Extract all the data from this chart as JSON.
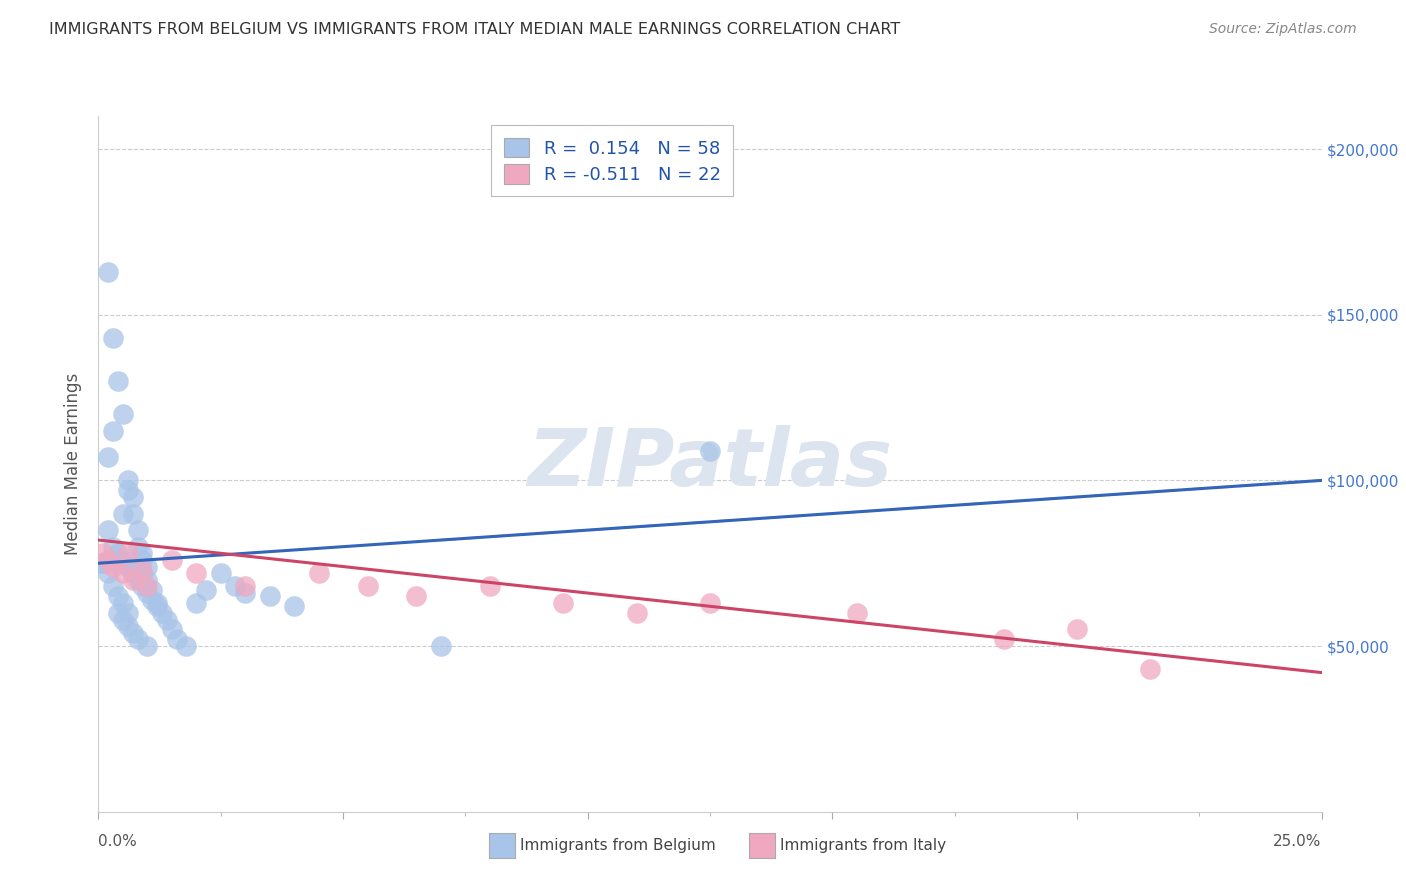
{
  "title": "IMMIGRANTS FROM BELGIUM VS IMMIGRANTS FROM ITALY MEDIAN MALE EARNINGS CORRELATION CHART",
  "source": "Source: ZipAtlas.com",
  "ylabel": "Median Male Earnings",
  "belgium_R": 0.154,
  "belgium_N": 58,
  "italy_R": -0.511,
  "italy_N": 22,
  "belgium_color": "#a8c4e8",
  "italy_color": "#f0a8c0",
  "belgium_line_color": "#3366bb",
  "italy_line_color": "#cc4466",
  "trend_line_color": "#c0c8d0",
  "background_color": "#ffffff",
  "watermark_color": "#dce4ef",
  "xlim": [
    0.0,
    0.25
  ],
  "ylim": [
    0,
    210000
  ],
  "bel_intercept": 75000,
  "bel_slope": 100000,
  "ita_intercept": 82000,
  "ita_slope": -160000,
  "belgium_x": [
    0.001,
    0.002,
    0.003,
    0.004,
    0.005,
    0.005,
    0.006,
    0.006,
    0.007,
    0.007,
    0.008,
    0.008,
    0.009,
    0.009,
    0.009,
    0.01,
    0.01,
    0.011,
    0.011,
    0.012,
    0.013,
    0.014,
    0.015,
    0.016,
    0.018,
    0.02,
    0.022,
    0.025,
    0.028,
    0.03,
    0.035,
    0.04,
    0.002,
    0.003,
    0.004,
    0.005,
    0.006,
    0.007,
    0.008,
    0.009,
    0.01,
    0.012,
    0.002,
    0.003,
    0.004,
    0.005,
    0.006,
    0.007,
    0.008,
    0.01,
    0.001,
    0.002,
    0.003,
    0.004,
    0.005,
    0.006,
    0.125,
    0.07
  ],
  "belgium_y": [
    75000,
    163000,
    143000,
    130000,
    120000,
    90000,
    100000,
    97000,
    95000,
    90000,
    85000,
    80000,
    78000,
    76000,
    72000,
    74000,
    70000,
    67000,
    64000,
    62000,
    60000,
    58000,
    55000,
    52000,
    50000,
    63000,
    67000,
    72000,
    68000,
    66000,
    65000,
    62000,
    85000,
    80000,
    78000,
    76000,
    74000,
    72000,
    70000,
    68000,
    66000,
    63000,
    107000,
    115000,
    60000,
    58000,
    56000,
    54000,
    52000,
    50000,
    75000,
    72000,
    68000,
    65000,
    63000,
    60000,
    109000,
    50000
  ],
  "italy_x": [
    0.001,
    0.002,
    0.003,
    0.005,
    0.006,
    0.007,
    0.009,
    0.01,
    0.015,
    0.02,
    0.03,
    0.045,
    0.055,
    0.065,
    0.08,
    0.095,
    0.11,
    0.125,
    0.155,
    0.185,
    0.2,
    0.215
  ],
  "italy_y": [
    78000,
    76000,
    74000,
    72000,
    78000,
    70000,
    73000,
    68000,
    76000,
    72000,
    68000,
    72000,
    68000,
    65000,
    68000,
    63000,
    60000,
    63000,
    60000,
    52000,
    55000,
    43000
  ]
}
